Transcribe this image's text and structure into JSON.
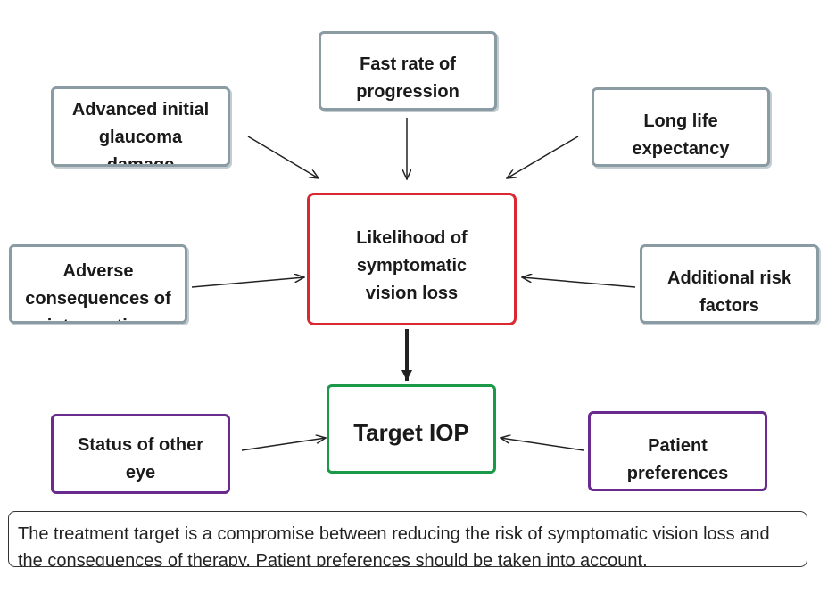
{
  "diagram": {
    "nodes": {
      "advanced_damage": "Advanced initial\nglaucoma\ndamage",
      "fast_rate": "Fast rate of\nprogression",
      "life_expectancy": "Long life\nexpectancy",
      "adverse_consequences": "Adverse\nconsequences of\nintervention",
      "likelihood": "Likelihood of\nsymptomatic\nvision loss",
      "additional_risk": "Additional risk\nfactors",
      "target_iop": "Target IOP",
      "other_eye": "Status of other\neye",
      "patient_preferences": "Patient\npreferences"
    },
    "edges": [
      {
        "from": "advanced_damage",
        "to": "likelihood"
      },
      {
        "from": "fast_rate",
        "to": "likelihood"
      },
      {
        "from": "life_expectancy",
        "to": "likelihood"
      },
      {
        "from": "adverse_consequences",
        "to": "likelihood"
      },
      {
        "from": "additional_risk",
        "to": "likelihood"
      },
      {
        "from": "likelihood",
        "to": "target_iop"
      },
      {
        "from": "other_eye",
        "to": "target_iop"
      },
      {
        "from": "patient_preferences",
        "to": "target_iop"
      }
    ],
    "colors": {
      "risk_factor_border": "#8a9ba3",
      "likelihood_border": "#d9282f",
      "target_border": "#1a9a48",
      "modifier_border": "#6a2b8e",
      "arrow": "#222222"
    },
    "note": "The treatment target is a compromise between reducing the risk of symptomatic vision loss and the consequences of therapy. Patient preferences should be taken into account."
  }
}
